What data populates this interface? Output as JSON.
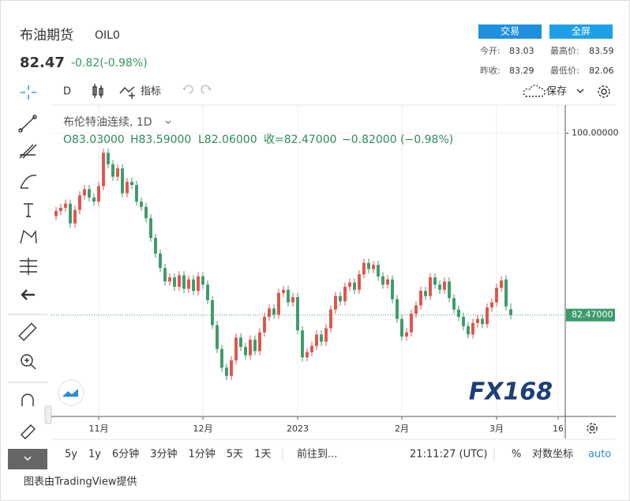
{
  "header": {
    "title": "布油期货",
    "symbol": "OIL0",
    "price": "82.47",
    "change": "-0.82(-0.98%)",
    "buttons": [
      "交易",
      "全屏"
    ],
    "stats": [
      {
        "label": "今开:",
        "value": "83.03"
      },
      {
        "label": "最高价:",
        "value": "83.59"
      },
      {
        "label": "昨收:",
        "value": "83.29"
      },
      {
        "label": "最低价:",
        "value": "82.06"
      }
    ]
  },
  "toolbar": {
    "interval": "D",
    "indicators": "指标",
    "save": "保存"
  },
  "legend": {
    "name": "布伦特油连续, 1D",
    "ohlc": [
      "O83.03000",
      "H83.59000",
      "L82.06000",
      "收=82.47000",
      "−0.82000 (−0.98%)"
    ]
  },
  "watermark": "FX168",
  "chart_data": {
    "type": "candlestick",
    "open": [
      92.0,
      92.5,
      92.8,
      93.2,
      91.3,
      92.6,
      94.0,
      94.6,
      93.8,
      93.4,
      94.9,
      98.1,
      97.0,
      95.8,
      96.6,
      94.2,
      95.3,
      95.0,
      93.4,
      92.9,
      91.8,
      89.9,
      88.4,
      87.0,
      85.7,
      86.1,
      85.2,
      86.3,
      85.0,
      85.9,
      84.8,
      86.2,
      85.4,
      83.9,
      81.5,
      79.2,
      77.4,
      76.6,
      78.1,
      80.3,
      79.4,
      78.6,
      80.1,
      79.0,
      80.8,
      82.3,
      83.1,
      82.5,
      84.6,
      84.9,
      83.7,
      84.2,
      81.0,
      78.4,
      78.9,
      79.5,
      80.6,
      79.9,
      81.2,
      83.0,
      84.3,
      83.8,
      85.2,
      85.6,
      84.9,
      86.4,
      87.5,
      86.9,
      87.3,
      86.2,
      85.4,
      85.9,
      84.0,
      82.1,
      80.4,
      80.8,
      82.6,
      83.4,
      84.8,
      84.3,
      86.1,
      85.4,
      84.9,
      85.7,
      84.1,
      83.0,
      82.3,
      81.4,
      80.6,
      81.7,
      82.1,
      81.6,
      83.2,
      83.7,
      85.1,
      85.9,
      83.03
    ],
    "high": [
      92.9,
      93.2,
      93.6,
      93.6,
      93.0,
      94.4,
      95.0,
      95.0,
      94.2,
      95.3,
      98.5,
      98.5,
      97.4,
      97.0,
      97.0,
      95.7,
      95.7,
      95.4,
      93.8,
      93.3,
      92.2,
      90.3,
      88.8,
      87.4,
      86.5,
      86.5,
      86.7,
      86.7,
      86.3,
      86.3,
      86.6,
      86.6,
      85.8,
      84.3,
      81.9,
      79.6,
      77.8,
      78.5,
      80.7,
      80.7,
      79.8,
      80.5,
      80.5,
      81.2,
      82.7,
      83.5,
      83.5,
      85.0,
      85.3,
      85.3,
      84.6,
      84.6,
      81.4,
      79.3,
      79.9,
      81.0,
      81.0,
      81.6,
      83.4,
      84.7,
      84.7,
      85.6,
      86.0,
      86.0,
      86.8,
      87.9,
      87.9,
      87.7,
      87.7,
      86.6,
      86.3,
      86.3,
      84.4,
      82.5,
      81.2,
      83.0,
      83.8,
      85.2,
      85.2,
      86.5,
      86.5,
      85.8,
      86.1,
      86.1,
      84.5,
      83.4,
      82.7,
      81.8,
      82.1,
      82.5,
      82.5,
      83.6,
      84.1,
      85.5,
      86.2,
      86.3,
      83.59
    ],
    "low": [
      91.6,
      92.1,
      92.4,
      90.9,
      90.9,
      92.2,
      93.6,
      93.4,
      93.0,
      93.0,
      94.5,
      96.6,
      95.4,
      95.4,
      93.8,
      93.8,
      94.6,
      93.0,
      92.5,
      91.4,
      89.5,
      88.0,
      86.6,
      85.3,
      85.3,
      84.8,
      84.8,
      84.6,
      84.6,
      84.4,
      84.4,
      85.0,
      83.5,
      81.1,
      78.8,
      77.0,
      76.2,
      76.2,
      77.7,
      79.0,
      78.2,
      78.2,
      78.6,
      78.6,
      80.4,
      81.9,
      82.1,
      82.1,
      84.2,
      83.3,
      83.3,
      80.6,
      78.0,
      78.0,
      78.5,
      79.1,
      79.5,
      79.5,
      80.8,
      82.6,
      83.4,
      83.4,
      84.8,
      84.5,
      84.5,
      86.0,
      86.5,
      86.5,
      85.8,
      85.0,
      85.0,
      83.6,
      81.7,
      80.0,
      80.0,
      80.4,
      82.2,
      83.0,
      83.9,
      83.9,
      85.0,
      84.5,
      84.5,
      83.7,
      82.6,
      81.9,
      81.0,
      80.2,
      80.2,
      81.3,
      81.2,
      81.2,
      82.8,
      83.3,
      84.7,
      82.9,
      82.06
    ],
    "close": [
      92.5,
      92.8,
      93.2,
      91.3,
      92.6,
      94.0,
      94.6,
      93.8,
      93.4,
      94.9,
      98.1,
      97.0,
      95.8,
      96.6,
      94.2,
      95.3,
      95.0,
      93.4,
      92.9,
      91.8,
      89.9,
      88.4,
      87.0,
      85.7,
      86.1,
      85.2,
      86.3,
      85.0,
      85.9,
      84.8,
      86.2,
      85.4,
      83.9,
      81.5,
      79.2,
      77.4,
      76.6,
      78.1,
      80.3,
      79.4,
      78.6,
      80.1,
      79.0,
      80.8,
      82.3,
      83.1,
      82.5,
      84.6,
      84.9,
      83.7,
      84.2,
      81.0,
      78.4,
      78.9,
      79.5,
      80.6,
      79.9,
      81.2,
      83.0,
      84.3,
      83.8,
      85.2,
      85.6,
      84.9,
      86.4,
      87.5,
      86.9,
      87.3,
      86.2,
      85.4,
      85.9,
      84.0,
      82.1,
      80.4,
      80.8,
      82.6,
      83.4,
      84.8,
      84.3,
      86.1,
      85.4,
      84.9,
      85.7,
      84.1,
      83.0,
      82.3,
      81.4,
      80.6,
      81.7,
      82.1,
      81.6,
      83.2,
      83.7,
      85.1,
      85.8,
      83.29,
      82.47
    ],
    "up_color": "#e0534a",
    "down_color": "#3d9a6b",
    "xlim": [
      -1,
      107.5
    ],
    "xticks": [
      {
        "value": 9,
        "label": "11月"
      },
      {
        "value": 31,
        "label": "12月"
      },
      {
        "value": 51,
        "label": "2023"
      },
      {
        "value": 73,
        "label": "2月"
      },
      {
        "value": 93,
        "label": "3月"
      },
      {
        "value": 106,
        "label": "16"
      }
    ],
    "ylim": [
      72.7,
      102.7
    ],
    "yticks": [
      {
        "value": 100,
        "label": "100.00000"
      }
    ],
    "last_price": {
      "value": 82.47,
      "label": "82.47000"
    },
    "grid": true
  },
  "bottom_bar": {
    "ranges": [
      "5y",
      "1y",
      "6分钟",
      "3分钟",
      "1分钟",
      "5天",
      "1天"
    ],
    "goto": "前往到...",
    "time": "21:11:27 (UTC)",
    "percent": "%",
    "log": "对数坐标",
    "auto": "auto"
  },
  "footer": "图表由TradingView提供"
}
